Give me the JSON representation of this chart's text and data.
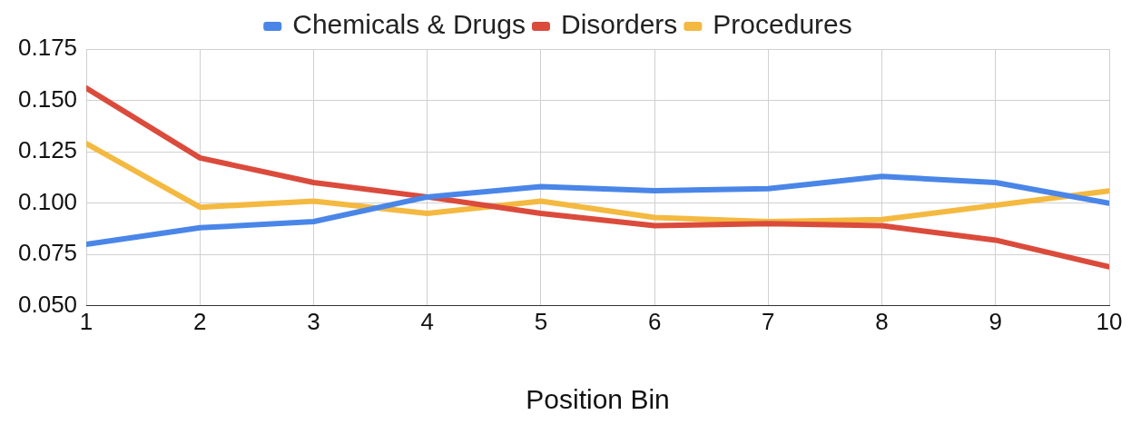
{
  "chart_data": {
    "type": "line",
    "xlabel": "Position Bin",
    "x": [
      1,
      2,
      3,
      4,
      5,
      6,
      7,
      8,
      9,
      10
    ],
    "series": [
      {
        "name": "Chemicals & Drugs",
        "color": "#4a86e8",
        "values": [
          0.08,
          0.088,
          0.091,
          0.103,
          0.108,
          0.106,
          0.107,
          0.113,
          0.11,
          0.1
        ]
      },
      {
        "name": "Disorders",
        "color": "#db4b3c",
        "values": [
          0.156,
          0.122,
          0.11,
          0.103,
          0.095,
          0.089,
          0.09,
          0.089,
          0.082,
          0.069
        ]
      },
      {
        "name": "Procedures",
        "color": "#f4b940",
        "values": [
          0.129,
          0.098,
          0.101,
          0.095,
          0.101,
          0.093,
          0.091,
          0.092,
          0.099,
          0.106
        ]
      }
    ],
    "xlim": [
      1,
      10
    ],
    "xticks": [
      1,
      2,
      3,
      4,
      5,
      6,
      7,
      8,
      9,
      10
    ],
    "ylim": [
      0.05,
      0.175
    ],
    "yticks": [
      {
        "value": 0.05,
        "label": "0.050"
      },
      {
        "value": 0.075,
        "label": "0.075"
      },
      {
        "value": 0.1,
        "label": "0.100"
      },
      {
        "value": 0.125,
        "label": "0.125"
      },
      {
        "value": 0.15,
        "label": "0.150"
      },
      {
        "value": 0.175,
        "label": "0.175"
      }
    ],
    "grid": true,
    "legend": "top",
    "marker": "none",
    "line_style": "solid"
  }
}
